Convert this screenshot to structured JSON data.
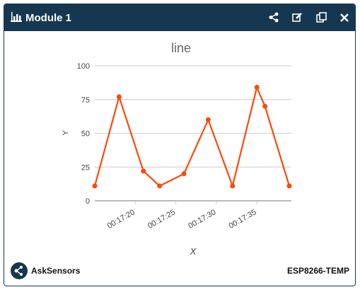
{
  "header": {
    "title": "Module 1"
  },
  "chart_data": {
    "type": "line",
    "title": "line",
    "x_label": "X",
    "y_label": "Y",
    "x": [
      "00:17:15",
      "00:17:18",
      "00:17:21",
      "00:17:23",
      "00:17:26",
      "00:17:29",
      "00:17:32",
      "00:17:35",
      "00:17:36",
      "00:17:39"
    ],
    "series": [
      {
        "name": "line",
        "color": "#fa4a0c",
        "values": [
          11,
          77,
          22,
          11,
          20,
          60,
          11,
          84,
          70,
          11
        ]
      }
    ],
    "xlim": [
      "00:17:15",
      "00:17:39"
    ],
    "xticks": [
      "00:17:20",
      "00:17:25",
      "00:17:30",
      "00:17:35"
    ],
    "ylim": [
      0,
      100
    ],
    "yticks": [
      0,
      25,
      50,
      75,
      100
    ],
    "grid": true
  },
  "footer": {
    "brand": "AskSensors",
    "device": "ESP8266-TEMP"
  }
}
